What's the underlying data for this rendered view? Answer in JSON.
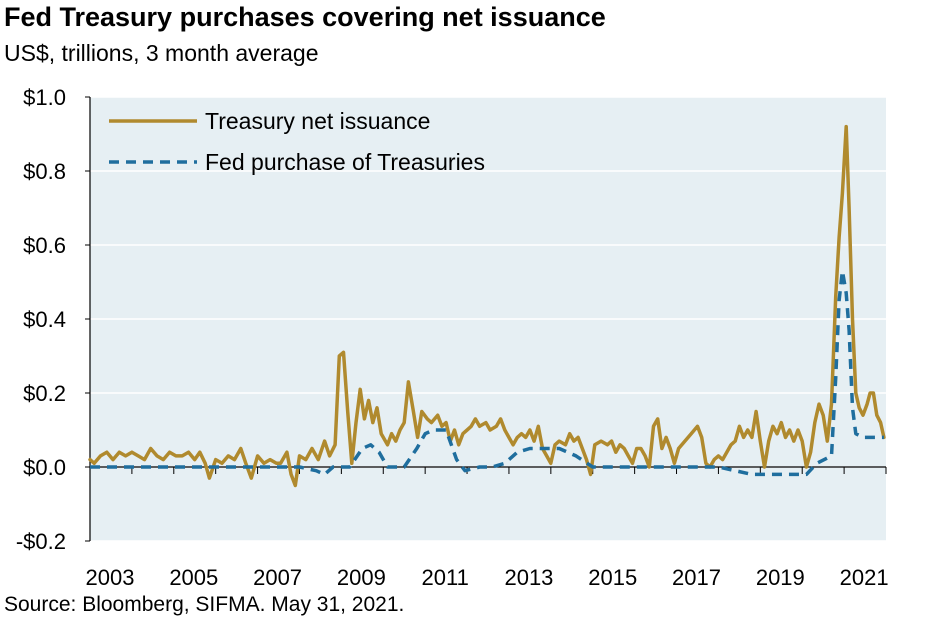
{
  "title": "Fed Treasury purchases covering net issuance",
  "subtitle": "US$, trillions, 3 month average",
  "source": "Source: Bloomberg, SIFMA. May 31, 2021.",
  "colors": {
    "plot_bg": "#e6eff3",
    "issuance": "#b08a2e",
    "fed": "#1f6e9e",
    "grid": "#ffffff"
  },
  "chart_data": {
    "type": "line",
    "title": "Fed Treasury purchases covering net issuance",
    "ylabel": "US$, trillions, 3 month average",
    "xlabel": "",
    "xlim": [
      2003,
      2021.4
    ],
    "ylim": [
      -0.2,
      1.0
    ],
    "yticks": [
      -0.2,
      0.0,
      0.2,
      0.4,
      0.6,
      0.8,
      1.0
    ],
    "ytick_labels": [
      "-$0.2",
      "$0.0",
      "$0.2",
      "$0.4",
      "$0.6",
      "$0.8",
      "$1.0"
    ],
    "xticks": [
      2003,
      2005,
      2007,
      2009,
      2011,
      2013,
      2015,
      2017,
      2019,
      2021
    ],
    "xtick_labels": [
      "2003",
      "2005",
      "2007",
      "2009",
      "2011",
      "2013",
      "2015",
      "2017",
      "2019",
      "2021"
    ],
    "grid": "horizontal",
    "legend_position": "top-left",
    "series": [
      {
        "name": "Treasury net issuance",
        "style": "solid",
        "points": [
          [
            2003.0,
            0.02
          ],
          [
            2003.1,
            0.01
          ],
          [
            2003.25,
            0.03
          ],
          [
            2003.4,
            0.04
          ],
          [
            2003.55,
            0.02
          ],
          [
            2003.7,
            0.04
          ],
          [
            2003.85,
            0.03
          ],
          [
            2004.0,
            0.04
          ],
          [
            2004.15,
            0.03
          ],
          [
            2004.3,
            0.02
          ],
          [
            2004.45,
            0.05
          ],
          [
            2004.6,
            0.03
          ],
          [
            2004.75,
            0.02
          ],
          [
            2004.9,
            0.04
          ],
          [
            2005.05,
            0.03
          ],
          [
            2005.2,
            0.03
          ],
          [
            2005.35,
            0.04
          ],
          [
            2005.5,
            0.02
          ],
          [
            2005.62,
            0.04
          ],
          [
            2005.75,
            0.01
          ],
          [
            2005.85,
            -0.03
          ],
          [
            2006.0,
            0.02
          ],
          [
            2006.15,
            0.01
          ],
          [
            2006.3,
            0.03
          ],
          [
            2006.45,
            0.02
          ],
          [
            2006.6,
            0.05
          ],
          [
            2006.72,
            0.01
          ],
          [
            2006.85,
            -0.03
          ],
          [
            2007.0,
            0.03
          ],
          [
            2007.15,
            0.01
          ],
          [
            2007.3,
            0.02
          ],
          [
            2007.45,
            0.01
          ],
          [
            2007.55,
            0.01
          ],
          [
            2007.7,
            0.04
          ],
          [
            2007.8,
            -0.02
          ],
          [
            2007.9,
            -0.05
          ],
          [
            2008.0,
            0.03
          ],
          [
            2008.15,
            0.02
          ],
          [
            2008.3,
            0.05
          ],
          [
            2008.45,
            0.02
          ],
          [
            2008.6,
            0.07
          ],
          [
            2008.72,
            0.03
          ],
          [
            2008.85,
            0.06
          ],
          [
            2008.95,
            0.3
          ],
          [
            2009.05,
            0.31
          ],
          [
            2009.15,
            0.15
          ],
          [
            2009.25,
            0.01
          ],
          [
            2009.35,
            0.12
          ],
          [
            2009.45,
            0.21
          ],
          [
            2009.55,
            0.13
          ],
          [
            2009.65,
            0.18
          ],
          [
            2009.75,
            0.12
          ],
          [
            2009.85,
            0.16
          ],
          [
            2009.95,
            0.09
          ],
          [
            2010.1,
            0.06
          ],
          [
            2010.2,
            0.09
          ],
          [
            2010.3,
            0.07
          ],
          [
            2010.4,
            0.1
          ],
          [
            2010.5,
            0.12
          ],
          [
            2010.6,
            0.23
          ],
          [
            2010.72,
            0.15
          ],
          [
            2010.82,
            0.08
          ],
          [
            2010.92,
            0.15
          ],
          [
            2011.05,
            0.13
          ],
          [
            2011.15,
            0.12
          ],
          [
            2011.3,
            0.14
          ],
          [
            2011.4,
            0.11
          ],
          [
            2011.5,
            0.12
          ],
          [
            2011.6,
            0.07
          ],
          [
            2011.7,
            0.1
          ],
          [
            2011.8,
            0.06
          ],
          [
            2011.9,
            0.09
          ],
          [
            2012.0,
            0.1
          ],
          [
            2012.1,
            0.11
          ],
          [
            2012.2,
            0.13
          ],
          [
            2012.3,
            0.11
          ],
          [
            2012.45,
            0.12
          ],
          [
            2012.55,
            0.1
          ],
          [
            2012.7,
            0.11
          ],
          [
            2012.8,
            0.13
          ],
          [
            2012.9,
            0.1
          ],
          [
            2013.0,
            0.08
          ],
          [
            2013.1,
            0.06
          ],
          [
            2013.2,
            0.08
          ],
          [
            2013.3,
            0.09
          ],
          [
            2013.4,
            0.08
          ],
          [
            2013.5,
            0.1
          ],
          [
            2013.6,
            0.07
          ],
          [
            2013.7,
            0.11
          ],
          [
            2013.8,
            0.05
          ],
          [
            2013.9,
            0.03
          ],
          [
            2014.0,
            0.01
          ],
          [
            2014.1,
            0.06
          ],
          [
            2014.2,
            0.07
          ],
          [
            2014.35,
            0.06
          ],
          [
            2014.45,
            0.09
          ],
          [
            2014.55,
            0.07
          ],
          [
            2014.65,
            0.08
          ],
          [
            2014.75,
            0.05
          ],
          [
            2014.85,
            0.02
          ],
          [
            2014.95,
            -0.02
          ],
          [
            2015.05,
            0.06
          ],
          [
            2015.2,
            0.07
          ],
          [
            2015.35,
            0.06
          ],
          [
            2015.45,
            0.07
          ],
          [
            2015.55,
            0.04
          ],
          [
            2015.65,
            0.06
          ],
          [
            2015.75,
            0.05
          ],
          [
            2015.85,
            0.03
          ],
          [
            2015.95,
            0.01
          ],
          [
            2016.05,
            0.05
          ],
          [
            2016.15,
            0.05
          ],
          [
            2016.25,
            0.03
          ],
          [
            2016.35,
            0.0
          ],
          [
            2016.45,
            0.11
          ],
          [
            2016.55,
            0.13
          ],
          [
            2016.65,
            0.05
          ],
          [
            2016.75,
            0.08
          ],
          [
            2016.85,
            0.05
          ],
          [
            2016.95,
            0.01
          ],
          [
            2017.05,
            0.05
          ],
          [
            2017.2,
            0.07
          ],
          [
            2017.35,
            0.09
          ],
          [
            2017.5,
            0.11
          ],
          [
            2017.6,
            0.08
          ],
          [
            2017.7,
            0.01
          ],
          [
            2017.8,
            0.0
          ],
          [
            2017.9,
            0.02
          ],
          [
            2018.0,
            0.03
          ],
          [
            2018.1,
            0.02
          ],
          [
            2018.2,
            0.04
          ],
          [
            2018.3,
            0.06
          ],
          [
            2018.4,
            0.07
          ],
          [
            2018.5,
            0.11
          ],
          [
            2018.6,
            0.08
          ],
          [
            2018.7,
            0.1
          ],
          [
            2018.8,
            0.08
          ],
          [
            2018.9,
            0.15
          ],
          [
            2019.0,
            0.07
          ],
          [
            2019.1,
            0.0
          ],
          [
            2019.2,
            0.07
          ],
          [
            2019.3,
            0.11
          ],
          [
            2019.4,
            0.09
          ],
          [
            2019.5,
            0.12
          ],
          [
            2019.6,
            0.08
          ],
          [
            2019.7,
            0.1
          ],
          [
            2019.8,
            0.07
          ],
          [
            2019.9,
            0.1
          ],
          [
            2020.0,
            0.07
          ],
          [
            2020.1,
            0.0
          ],
          [
            2020.2,
            0.04
          ],
          [
            2020.3,
            0.12
          ],
          [
            2020.4,
            0.17
          ],
          [
            2020.5,
            0.14
          ],
          [
            2020.6,
            0.07
          ],
          [
            2020.7,
            0.17
          ],
          [
            2020.8,
            0.46
          ],
          [
            2020.88,
            0.62
          ],
          [
            2020.96,
            0.74
          ],
          [
            2021.05,
            0.92
          ],
          [
            2021.12,
            0.7
          ],
          [
            2021.2,
            0.4
          ],
          [
            2021.28,
            0.2
          ],
          [
            2021.36,
            0.16
          ],
          [
            2021.45,
            0.14
          ],
          [
            2021.55,
            0.17
          ],
          [
            2021.62,
            0.2
          ],
          [
            2021.7,
            0.2
          ],
          [
            2021.78,
            0.14
          ],
          [
            2021.87,
            0.12
          ],
          [
            2021.95,
            0.08
          ]
        ]
      },
      {
        "name": "Fed purchase of Treasuries",
        "style": "dashed",
        "points": [
          [
            2003.0,
            0.0
          ],
          [
            2004.0,
            0.0
          ],
          [
            2005.0,
            0.0
          ],
          [
            2006.0,
            0.0
          ],
          [
            2007.0,
            0.0
          ],
          [
            2007.8,
            0.0
          ],
          [
            2008.0,
            0.0
          ],
          [
            2008.4,
            -0.01
          ],
          [
            2008.6,
            -0.02
          ],
          [
            2008.8,
            0.0
          ],
          [
            2009.2,
            0.0
          ],
          [
            2009.5,
            0.05
          ],
          [
            2009.7,
            0.06
          ],
          [
            2009.9,
            0.04
          ],
          [
            2010.1,
            0.0
          ],
          [
            2010.5,
            0.0
          ],
          [
            2010.8,
            0.05
          ],
          [
            2011.0,
            0.09
          ],
          [
            2011.2,
            0.1
          ],
          [
            2011.5,
            0.1
          ],
          [
            2011.75,
            0.02
          ],
          [
            2011.95,
            -0.01
          ],
          [
            2012.3,
            0.0
          ],
          [
            2012.6,
            0.0
          ],
          [
            2012.9,
            0.01
          ],
          [
            2013.2,
            0.04
          ],
          [
            2013.5,
            0.05
          ],
          [
            2013.8,
            0.05
          ],
          [
            2014.2,
            0.05
          ],
          [
            2014.6,
            0.03
          ],
          [
            2015.0,
            0.0
          ],
          [
            2016.0,
            0.0
          ],
          [
            2017.0,
            0.0
          ],
          [
            2018.0,
            0.0
          ],
          [
            2018.4,
            -0.01
          ],
          [
            2018.8,
            -0.02
          ],
          [
            2019.2,
            -0.02
          ],
          [
            2019.6,
            -0.02
          ],
          [
            2019.9,
            -0.02
          ],
          [
            2020.1,
            -0.02
          ],
          [
            2020.35,
            0.01
          ],
          [
            2020.7,
            0.03
          ],
          [
            2020.8,
            0.24
          ],
          [
            2020.88,
            0.45
          ],
          [
            2020.96,
            0.53
          ],
          [
            2021.05,
            0.47
          ],
          [
            2021.12,
            0.37
          ],
          [
            2021.2,
            0.16
          ],
          [
            2021.28,
            0.09
          ],
          [
            2021.45,
            0.08
          ],
          [
            2021.7,
            0.08
          ],
          [
            2021.95,
            0.08
          ]
        ]
      }
    ]
  }
}
